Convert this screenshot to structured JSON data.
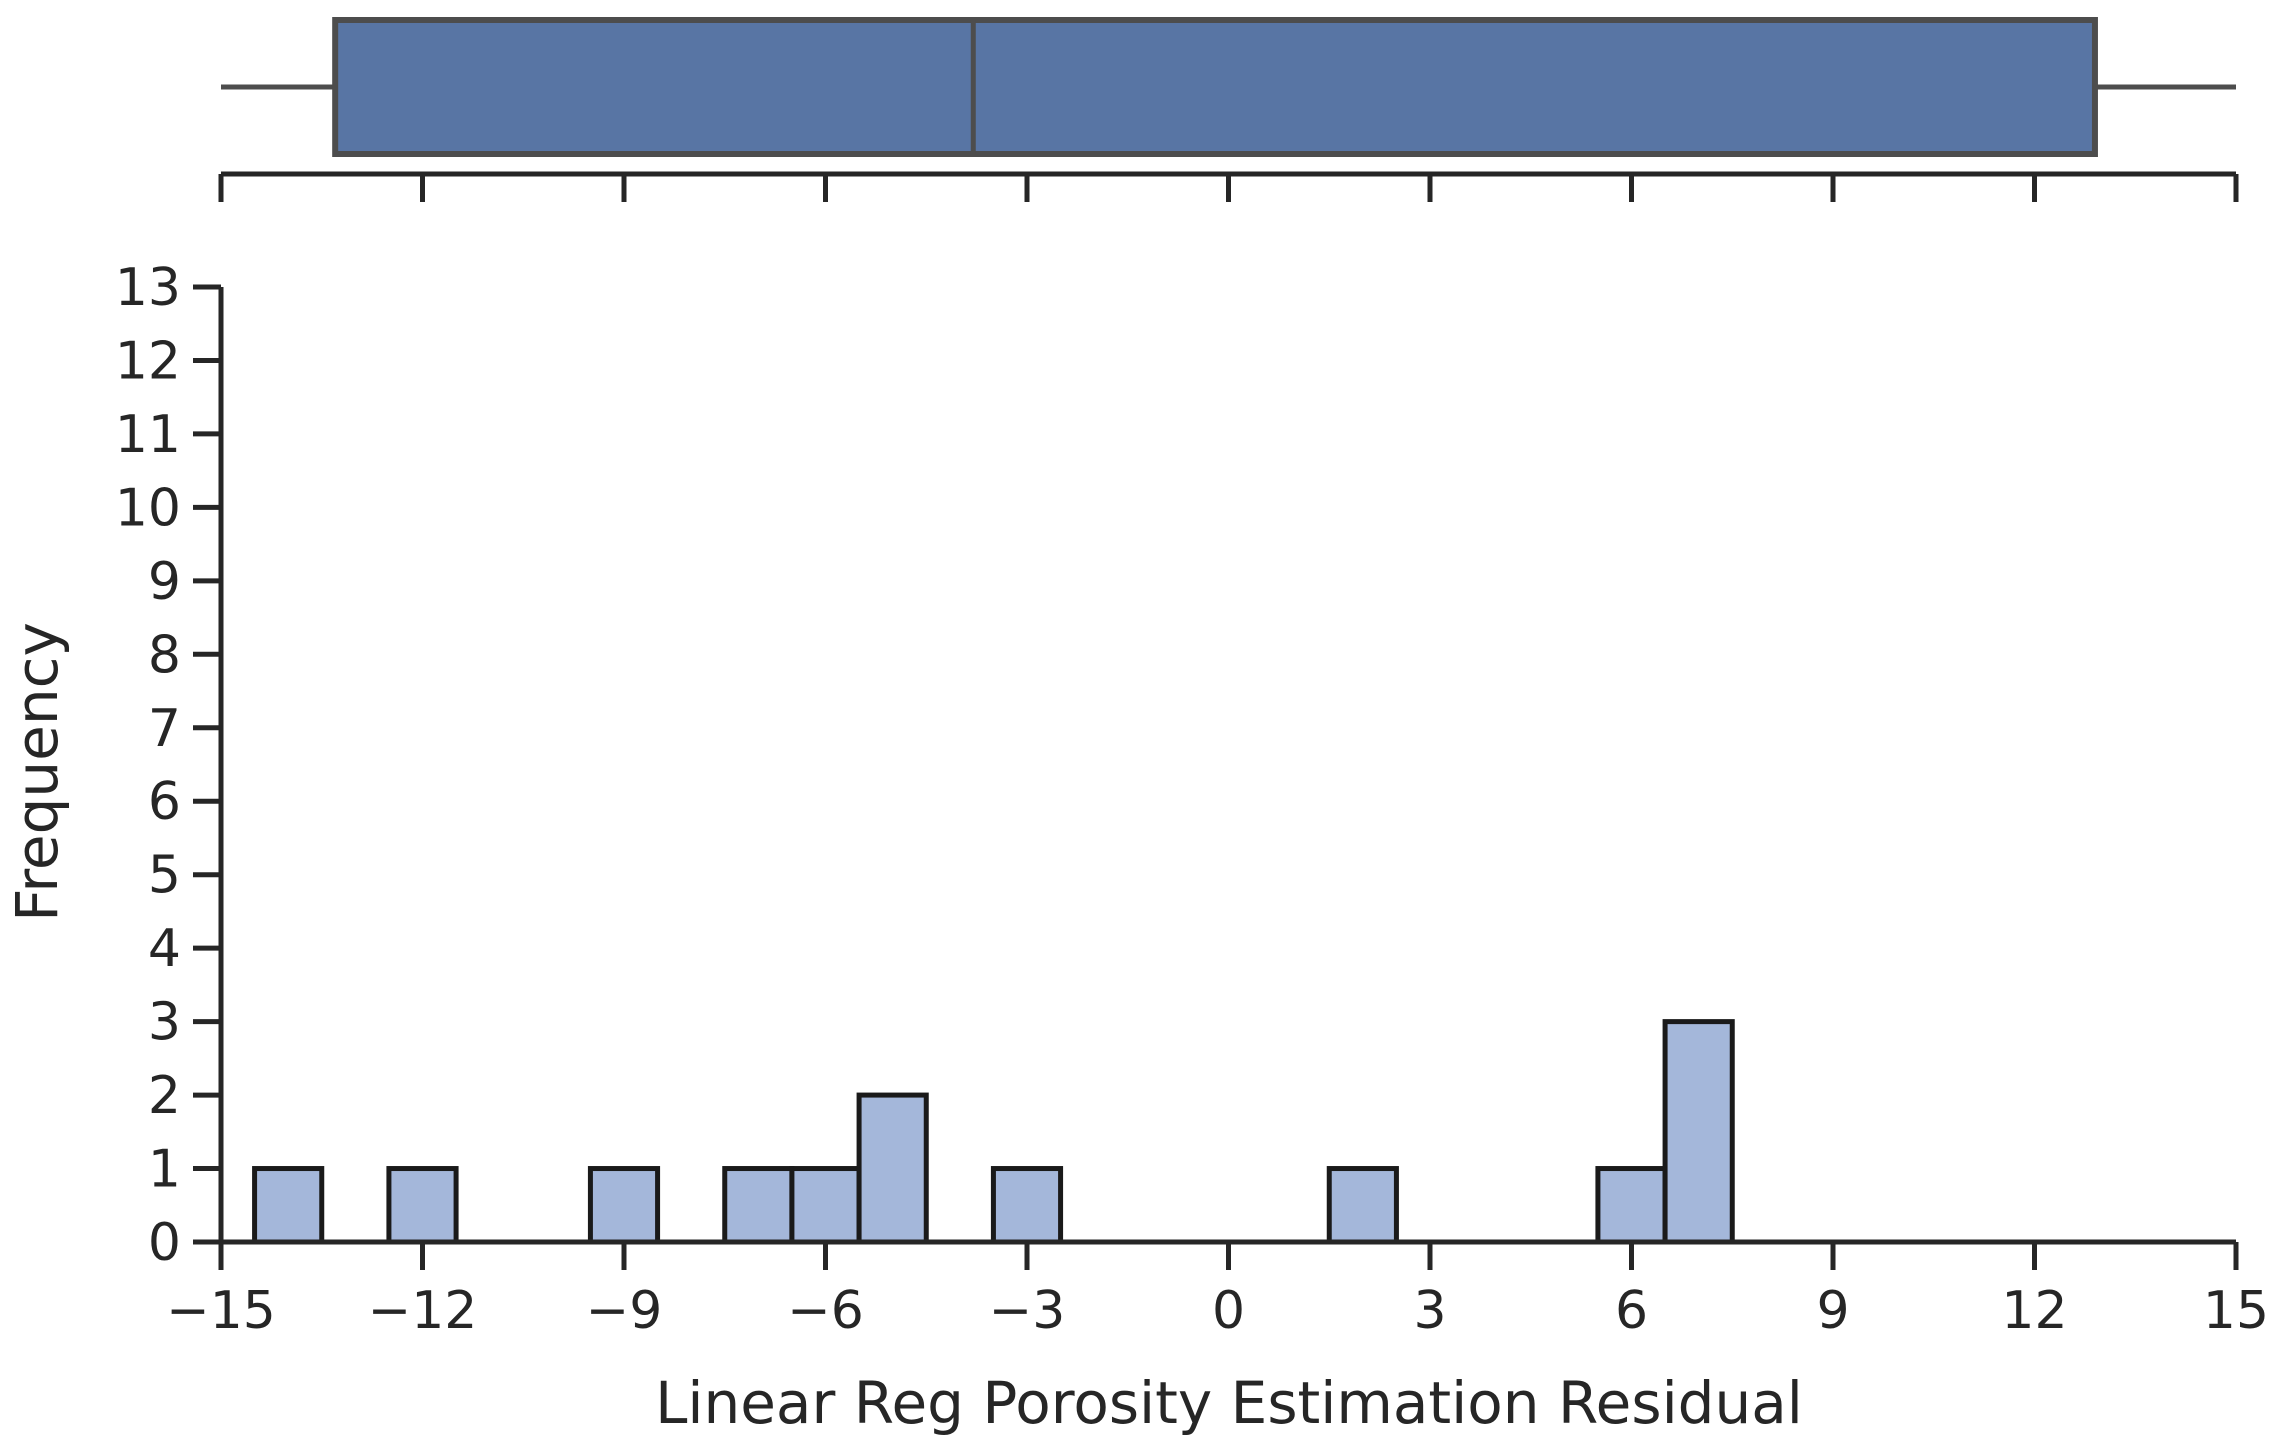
{
  "chart_data": {
    "type": "histogram",
    "xlabel": "Linear Reg Porosity Estimation Residual",
    "ylabel": "Frequency",
    "xlim": [
      -15,
      15
    ],
    "ylim": [
      0,
      13
    ],
    "x_ticks": [
      -15,
      -12,
      -9,
      -6,
      -3,
      0,
      3,
      6,
      9,
      12,
      15
    ],
    "x_tick_labels": [
      "−15",
      "−12",
      "−9",
      "−6",
      "−3",
      "0",
      "3",
      "6",
      "9",
      "12",
      "15"
    ],
    "y_ticks": [
      0,
      1,
      2,
      3,
      4,
      5,
      6,
      7,
      8,
      9,
      10,
      11,
      12,
      13
    ],
    "y_tick_labels": [
      "0",
      "1",
      "2",
      "3",
      "4",
      "5",
      "6",
      "7",
      "8",
      "9",
      "10",
      "11",
      "12",
      "13"
    ],
    "bins": [
      {
        "x0": -14.5,
        "x1": -13.5,
        "count": 1
      },
      {
        "x0": -12.5,
        "x1": -11.5,
        "count": 1
      },
      {
        "x0": -9.5,
        "x1": -8.5,
        "count": 1
      },
      {
        "x0": -7.5,
        "x1": -6.5,
        "count": 1
      },
      {
        "x0": -6.5,
        "x1": -5.5,
        "count": 1
      },
      {
        "x0": -5.5,
        "x1": -4.5,
        "count": 2
      },
      {
        "x0": -3.5,
        "x1": -2.5,
        "count": 1
      },
      {
        "x0": 1.5,
        "x1": 2.5,
        "count": 1
      },
      {
        "x0": 5.5,
        "x1": 6.5,
        "count": 1
      },
      {
        "x0": 6.5,
        "x1": 7.5,
        "count": 3
      }
    ],
    "boxplot": {
      "whisker_low": -15,
      "q1": -13.3,
      "median": -3.8,
      "q3": 12.9,
      "whisker_high": 15
    },
    "colors": {
      "bar_fill": "#a4b7da",
      "bar_edge": "#1a1a1a",
      "box_fill": "#5875a4",
      "box_edge": "#4d4d4d",
      "axis": "#262626"
    },
    "grid": false,
    "legend": "none"
  }
}
